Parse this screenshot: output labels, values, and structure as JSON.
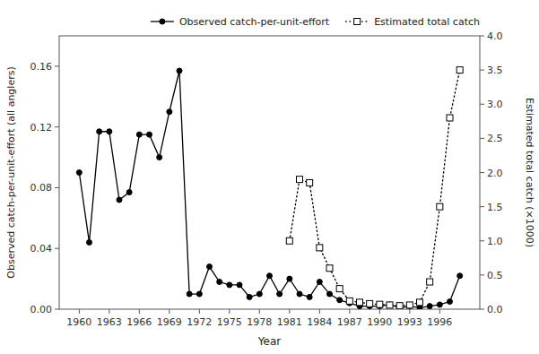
{
  "chart_data": {
    "type": "line",
    "xlabel": "Year",
    "ylabel": "Observed catch-per-unit-effort (all anglers)",
    "y2label": "Estimated total catch (×1000)",
    "xlim": [
      1958,
      2000
    ],
    "xticks": [
      1960,
      1963,
      1966,
      1969,
      1972,
      1975,
      1978,
      1981,
      1984,
      1987,
      1990,
      1993,
      1996
    ],
    "ylim": [
      0,
      0.18
    ],
    "yticks": [
      {
        "value": 0.0,
        "label": "0.00"
      },
      {
        "value": 0.04,
        "label": "0.04"
      },
      {
        "value": 0.08,
        "label": "0.08"
      },
      {
        "value": 0.12,
        "label": "0.12"
      },
      {
        "value": 0.16,
        "label": "0.16"
      }
    ],
    "y2lim": [
      0,
      4.0
    ],
    "y2ticks": [
      {
        "value": 0.0,
        "label": "0.0"
      },
      0.5,
      {
        "value": 1.0,
        "label": "1.0"
      },
      1.5,
      {
        "value": 2.0,
        "label": "2.0"
      },
      2.5,
      {
        "value": 3.0,
        "label": "3.0"
      },
      3.5,
      {
        "value": 4.0,
        "label": "4.0"
      }
    ],
    "legend": "upper right",
    "series": [
      {
        "name": "Observed catch-per-unit-effort",
        "color": "black",
        "marker": "circle",
        "line_style": "solid",
        "x": [
          1960,
          1961,
          1962,
          1963,
          1964,
          1965,
          1966,
          1967,
          1968,
          1969,
          1970,
          1971,
          1972,
          1973,
          1974,
          1975,
          1976,
          1977,
          1978,
          1979,
          1980,
          1981,
          1982,
          1983,
          1984,
          1985,
          1986,
          1987,
          1988,
          1989,
          1990,
          1991,
          1992,
          1993,
          1994,
          1995,
          1996,
          1997,
          1998
        ],
        "values": [
          0.09,
          0.044,
          0.117,
          0.117,
          0.072,
          0.077,
          0.115,
          0.115,
          0.1,
          0.13,
          0.157,
          0.01,
          0.01,
          0.028,
          0.018,
          0.016,
          0.016,
          0.008,
          0.01,
          0.022,
          0.01,
          0.02,
          0.01,
          0.008,
          0.018,
          0.01,
          0.006,
          0.004,
          0.002,
          0.002,
          0.002,
          0.003,
          0.001,
          0.002,
          0.001,
          0.002,
          0.003,
          0.005,
          0.022
        ]
      },
      {
        "name": "Estimated total catch",
        "color": "black",
        "marker": "open-square",
        "line_style": "dotted",
        "axis": "y2",
        "x": [
          1981,
          1982,
          1983,
          1984,
          1985,
          1986,
          1987,
          1988,
          1989,
          1990,
          1991,
          1992,
          1993,
          1994,
          1995,
          1996,
          1997,
          1998
        ],
        "values": [
          1.0,
          1.9,
          1.85,
          0.9,
          0.6,
          0.3,
          0.12,
          0.1,
          0.08,
          0.07,
          0.06,
          0.05,
          0.06,
          0.1,
          0.4,
          1.5,
          2.8,
          3.5
        ]
      }
    ]
  }
}
